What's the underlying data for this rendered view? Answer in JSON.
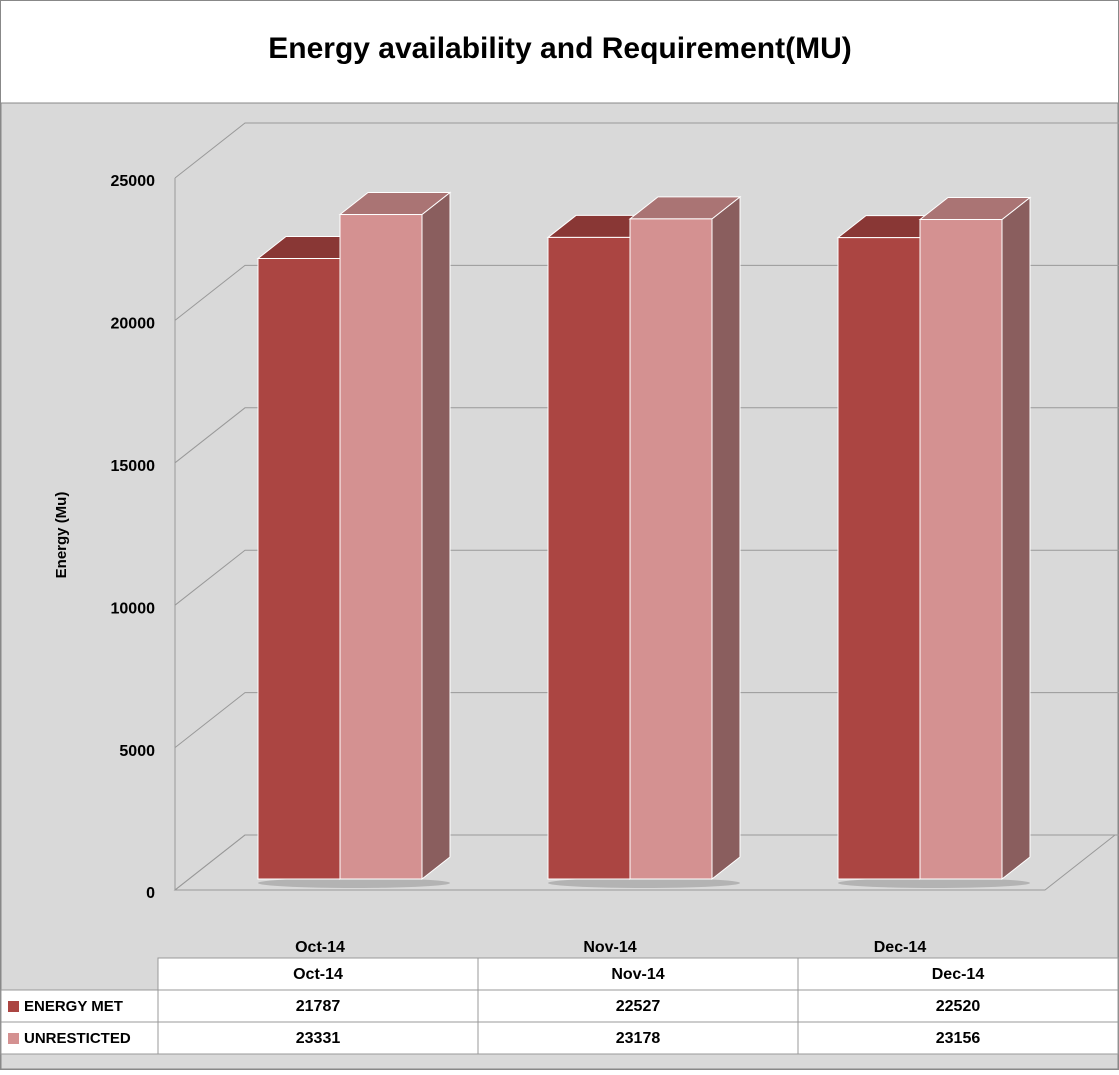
{
  "chart_data": {
    "type": "bar3d",
    "title": "Energy availability and  Requirement(MU)",
    "y_label": "Energy (Mu)",
    "categories": [
      "Oct-14",
      "Nov-14",
      "Dec-14"
    ],
    "series": [
      {
        "name": "ENERGY MET",
        "color": "#ab4542",
        "values": [
          21787,
          22527,
          22520
        ]
      },
      {
        "name": "UNRESTICTED",
        "color": "#d49191",
        "values": [
          23331,
          23178,
          23156
        ]
      }
    ],
    "ylim": [
      0,
      25000
    ],
    "yticks": [
      0,
      5000,
      10000,
      15000,
      20000,
      25000
    ],
    "grid": true,
    "data_table": true
  }
}
